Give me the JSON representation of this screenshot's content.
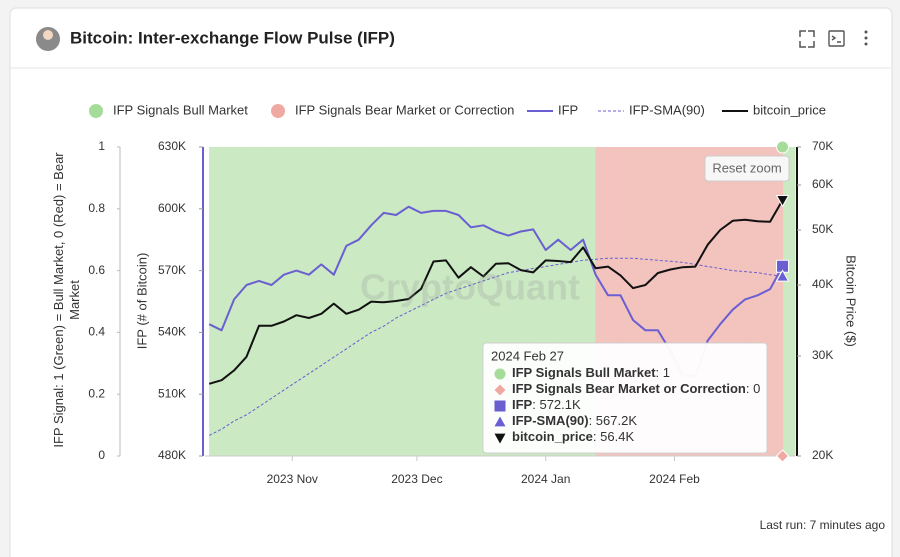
{
  "chart_data": {
    "type": "line",
    "title": "Bitcoin: Inter-exchange Flow Pulse (IFP)",
    "watermark": "CryptoQuant",
    "reset_zoom": "Reset zoom",
    "last_run": "Last run: 7 minutes ago",
    "tooltip_title": "2024 Feb 27",
    "signal_axis_label": "IFP Signal: 1 (Green) = Bull Market, 0 (Red) = Bear Market",
    "y_label": "IFP (# of Bitcoin)",
    "y2_label": "Bitcoin Price ($)",
    "x": [
      "2023-10-12",
      "2023-10-15",
      "2023-10-18",
      "2023-10-21",
      "2023-10-24",
      "2023-10-27",
      "2023-10-30",
      "2023-11-02",
      "2023-11-05",
      "2023-11-08",
      "2023-11-11",
      "2023-11-14",
      "2023-11-17",
      "2023-11-20",
      "2023-11-23",
      "2023-11-26",
      "2023-11-29",
      "2023-12-02",
      "2023-12-05",
      "2023-12-08",
      "2023-12-11",
      "2023-12-14",
      "2023-12-17",
      "2023-12-20",
      "2023-12-23",
      "2023-12-26",
      "2023-12-29",
      "2024-01-01",
      "2024-01-04",
      "2024-01-07",
      "2024-01-10",
      "2024-01-13",
      "2024-01-16",
      "2024-01-19",
      "2024-01-22",
      "2024-01-25",
      "2024-01-28",
      "2024-01-31",
      "2024-02-03",
      "2024-02-06",
      "2024-02-09",
      "2024-02-12",
      "2024-02-15",
      "2024-02-18",
      "2024-02-21",
      "2024-02-24",
      "2024-02-27"
    ],
    "xlim": [
      "2023-10-11",
      "2024-03-01"
    ],
    "xticks": [
      {
        "value": "2023-11-01",
        "label": "2023 Nov"
      },
      {
        "value": "2023-12-01",
        "label": "2023 Dec"
      },
      {
        "value": "2024-01-01",
        "label": "2024 Jan"
      },
      {
        "value": "2024-02-01",
        "label": "2024 Feb"
      }
    ],
    "signal_ylim": [
      0,
      1
    ],
    "signal_yticks": [
      0,
      0.2,
      0.4,
      0.6,
      0.8,
      1
    ],
    "ylim": [
      480000,
      630000
    ],
    "yticks": [
      {
        "value": 480000,
        "label": "480K"
      },
      {
        "value": 510000,
        "label": "510K"
      },
      {
        "value": 540000,
        "label": "540K"
      },
      {
        "value": 570000,
        "label": "570K"
      },
      {
        "value": 600000,
        "label": "600K"
      },
      {
        "value": 630000,
        "label": "630K"
      }
    ],
    "y2lim": [
      20000,
      70000
    ],
    "y2scale": "log",
    "y2ticks": [
      {
        "value": 20000,
        "label": "20K"
      },
      {
        "value": 30000,
        "label": "30K"
      },
      {
        "value": 40000,
        "label": "40K"
      },
      {
        "value": 50000,
        "label": "50K"
      },
      {
        "value": 60000,
        "label": "60K"
      },
      {
        "value": 70000,
        "label": "70K"
      }
    ],
    "grid": false,
    "legend": "top",
    "series": [
      {
        "name": "IFP Signals Bull Market",
        "color": "#cbe9c3",
        "kind": "area",
        "axis": "signal",
        "marker": "circle",
        "values": [
          1,
          1,
          1,
          1,
          1,
          1,
          1,
          1,
          1,
          1,
          1,
          1,
          1,
          1,
          1,
          1,
          1,
          1,
          1,
          1,
          1,
          1,
          1,
          1,
          1,
          1,
          1,
          1,
          1,
          1,
          1,
          0,
          0,
          0,
          0,
          0,
          0,
          0,
          0,
          0,
          0,
          0,
          0,
          0,
          0,
          0,
          1
        ]
      },
      {
        "name": "IFP Signals Bear Market or Correction",
        "color": "#f3c3be",
        "kind": "area",
        "axis": "signal",
        "marker": "diamond",
        "values": [
          0,
          0,
          0,
          0,
          0,
          0,
          0,
          0,
          0,
          0,
          0,
          0,
          0,
          0,
          0,
          0,
          0,
          0,
          0,
          0,
          0,
          0,
          0,
          0,
          0,
          0,
          0,
          0,
          0,
          0,
          0,
          1,
          1,
          1,
          1,
          1,
          1,
          1,
          1,
          1,
          1,
          1,
          1,
          1,
          1,
          1,
          0
        ]
      },
      {
        "name": "IFP",
        "color": "#6a5fd1",
        "kind": "line",
        "axis": "y",
        "marker": "square",
        "values": [
          544000,
          541000,
          556000,
          563000,
          565000,
          563000,
          568000,
          570000,
          568000,
          573000,
          568000,
          582000,
          585000,
          592000,
          598000,
          597000,
          601000,
          598000,
          599000,
          599000,
          597000,
          591000,
          592000,
          589000,
          587000,
          589000,
          590000,
          580000,
          585000,
          580000,
          585000,
          568000,
          558000,
          558000,
          546000,
          541000,
          541000,
          531000,
          519000,
          519000,
          536000,
          544000,
          551000,
          556000,
          558000,
          561000,
          572100
        ],
        "value_labels": [
          null,
          null,
          null,
          null,
          null,
          null,
          null,
          null,
          null,
          null,
          null,
          null,
          null,
          null,
          null,
          null,
          null,
          null,
          null,
          null,
          null,
          null,
          null,
          null,
          null,
          null,
          null,
          null,
          null,
          null,
          null,
          null,
          null,
          null,
          null,
          null,
          null,
          null,
          null,
          null,
          null,
          null,
          null,
          null,
          null,
          null,
          "572.1K"
        ]
      },
      {
        "name": "IFP-SMA(90)",
        "color": "#6a5fd1",
        "kind": "line",
        "dashed": true,
        "axis": "y",
        "marker": "triangle",
        "values": [
          490000,
          493000,
          497000,
          500000,
          504000,
          508000,
          512000,
          516000,
          520000,
          524000,
          528000,
          532000,
          536000,
          540000,
          543000,
          547000,
          550000,
          553000,
          556000,
          559000,
          561000,
          563000,
          565000,
          567000,
          569000,
          570000,
          571000,
          572000,
          573000,
          574000,
          575000,
          575500,
          576000,
          576000,
          576000,
          575500,
          575000,
          574500,
          574000,
          573000,
          572000,
          571000,
          570000,
          569500,
          569000,
          568000,
          567200
        ],
        "value_labels": [
          null,
          null,
          null,
          null,
          null,
          null,
          null,
          null,
          null,
          null,
          null,
          null,
          null,
          null,
          null,
          null,
          null,
          null,
          null,
          null,
          null,
          null,
          null,
          null,
          null,
          null,
          null,
          null,
          null,
          null,
          null,
          null,
          null,
          null,
          null,
          null,
          null,
          null,
          null,
          null,
          null,
          null,
          null,
          null,
          null,
          null,
          "567.2K"
        ]
      },
      {
        "name": "bitcoin_price",
        "color": "#111111",
        "kind": "line",
        "axis": "y2",
        "marker": "triangle-down",
        "values": [
          26800,
          27200,
          28300,
          29900,
          33900,
          33900,
          34500,
          35400,
          35000,
          35600,
          37100,
          35600,
          36200,
          37400,
          37300,
          37500,
          37800,
          39400,
          44000,
          44200,
          41200,
          43000,
          41400,
          43600,
          43700,
          42500,
          42100,
          44200,
          44100,
          43900,
          46600,
          42800,
          43100,
          41600,
          39500,
          40000,
          42000,
          42600,
          43000,
          43100,
          47100,
          50000,
          51900,
          52100,
          51800,
          51700,
          56400
        ],
        "value_labels": [
          null,
          null,
          null,
          null,
          null,
          null,
          null,
          null,
          null,
          null,
          null,
          null,
          null,
          null,
          null,
          null,
          null,
          null,
          null,
          null,
          null,
          null,
          null,
          null,
          null,
          null,
          null,
          null,
          null,
          null,
          null,
          null,
          null,
          null,
          null,
          null,
          null,
          null,
          null,
          null,
          null,
          null,
          null,
          null,
          null,
          null,
          "56.4K"
        ]
      }
    ]
  }
}
